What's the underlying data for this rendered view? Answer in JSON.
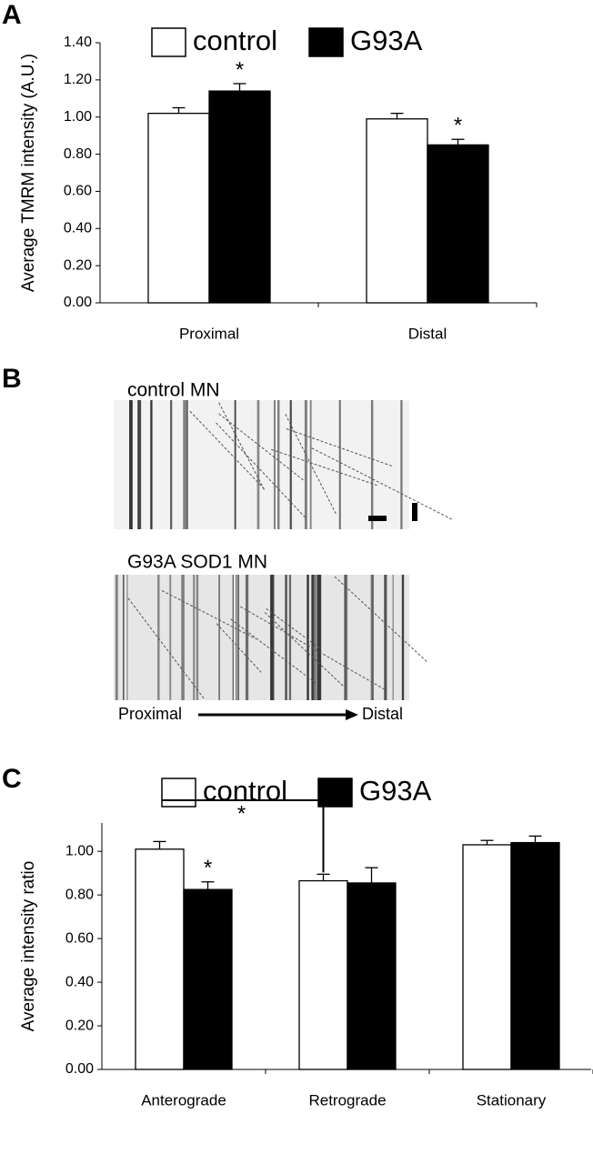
{
  "panel_labels": [
    "A",
    "B",
    "C"
  ],
  "kymograph": {
    "top_label": "control MN",
    "bottom_label": "G93A SOD1 MN",
    "axis_start": "Proximal",
    "axis_end": "Distal"
  },
  "chart_data": [
    {
      "type": "bar",
      "y_label": "Average TMRM intensity (A.U.)",
      "categories": [
        "Proximal",
        "Distal"
      ],
      "series": [
        {
          "name": "control",
          "color": "#ffffff",
          "values": [
            1.02,
            0.99
          ],
          "errors": [
            0.03,
            0.03
          ]
        },
        {
          "name": "G93A",
          "color": "#000000",
          "values": [
            1.14,
            0.85
          ],
          "errors": [
            0.04,
            0.03
          ],
          "sig_labels": [
            "*",
            "*"
          ]
        }
      ],
      "ylim": [
        0,
        1.4
      ],
      "yticks": [
        {
          "value": 0,
          "label": "0.00"
        },
        {
          "value": 0.2,
          "label": "0.20"
        },
        {
          "value": 0.4,
          "label": "0.40"
        },
        {
          "value": 0.6,
          "label": "0.60"
        },
        {
          "value": 0.8,
          "label": "0.80"
        },
        {
          "value": 1.0,
          "label": "1.00"
        },
        {
          "value": 1.2,
          "label": "1.20"
        },
        {
          "value": 1.4,
          "label": "1.40"
        }
      ],
      "legend": "top"
    },
    {
      "type": "bar",
      "y_label": "Average intensity ratio",
      "categories": [
        "Anterograde",
        "Retrograde",
        "Stationary"
      ],
      "series": [
        {
          "name": "control",
          "color": "#ffffff",
          "values": [
            1.01,
            0.865,
            1.03
          ],
          "errors": [
            0.035,
            0.03,
            0.02
          ]
        },
        {
          "name": "G93A",
          "color": "#000000",
          "values": [
            0.825,
            0.855,
            1.04
          ],
          "errors": [
            0.035,
            0.07,
            0.03
          ],
          "sig_labels": [
            "*",
            null,
            null
          ]
        }
      ],
      "bracket_label": "*",
      "ylim": [
        0,
        1.13
      ],
      "yticks": [
        {
          "value": 0,
          "label": "0.00"
        },
        {
          "value": 0.2,
          "label": "0.20"
        },
        {
          "value": 0.4,
          "label": "0.40"
        },
        {
          "value": 0.6,
          "label": "0.60"
        },
        {
          "value": 0.8,
          "label": "0.80"
        },
        {
          "value": 1.0,
          "label": "1.00"
        }
      ],
      "legend": "top"
    }
  ]
}
